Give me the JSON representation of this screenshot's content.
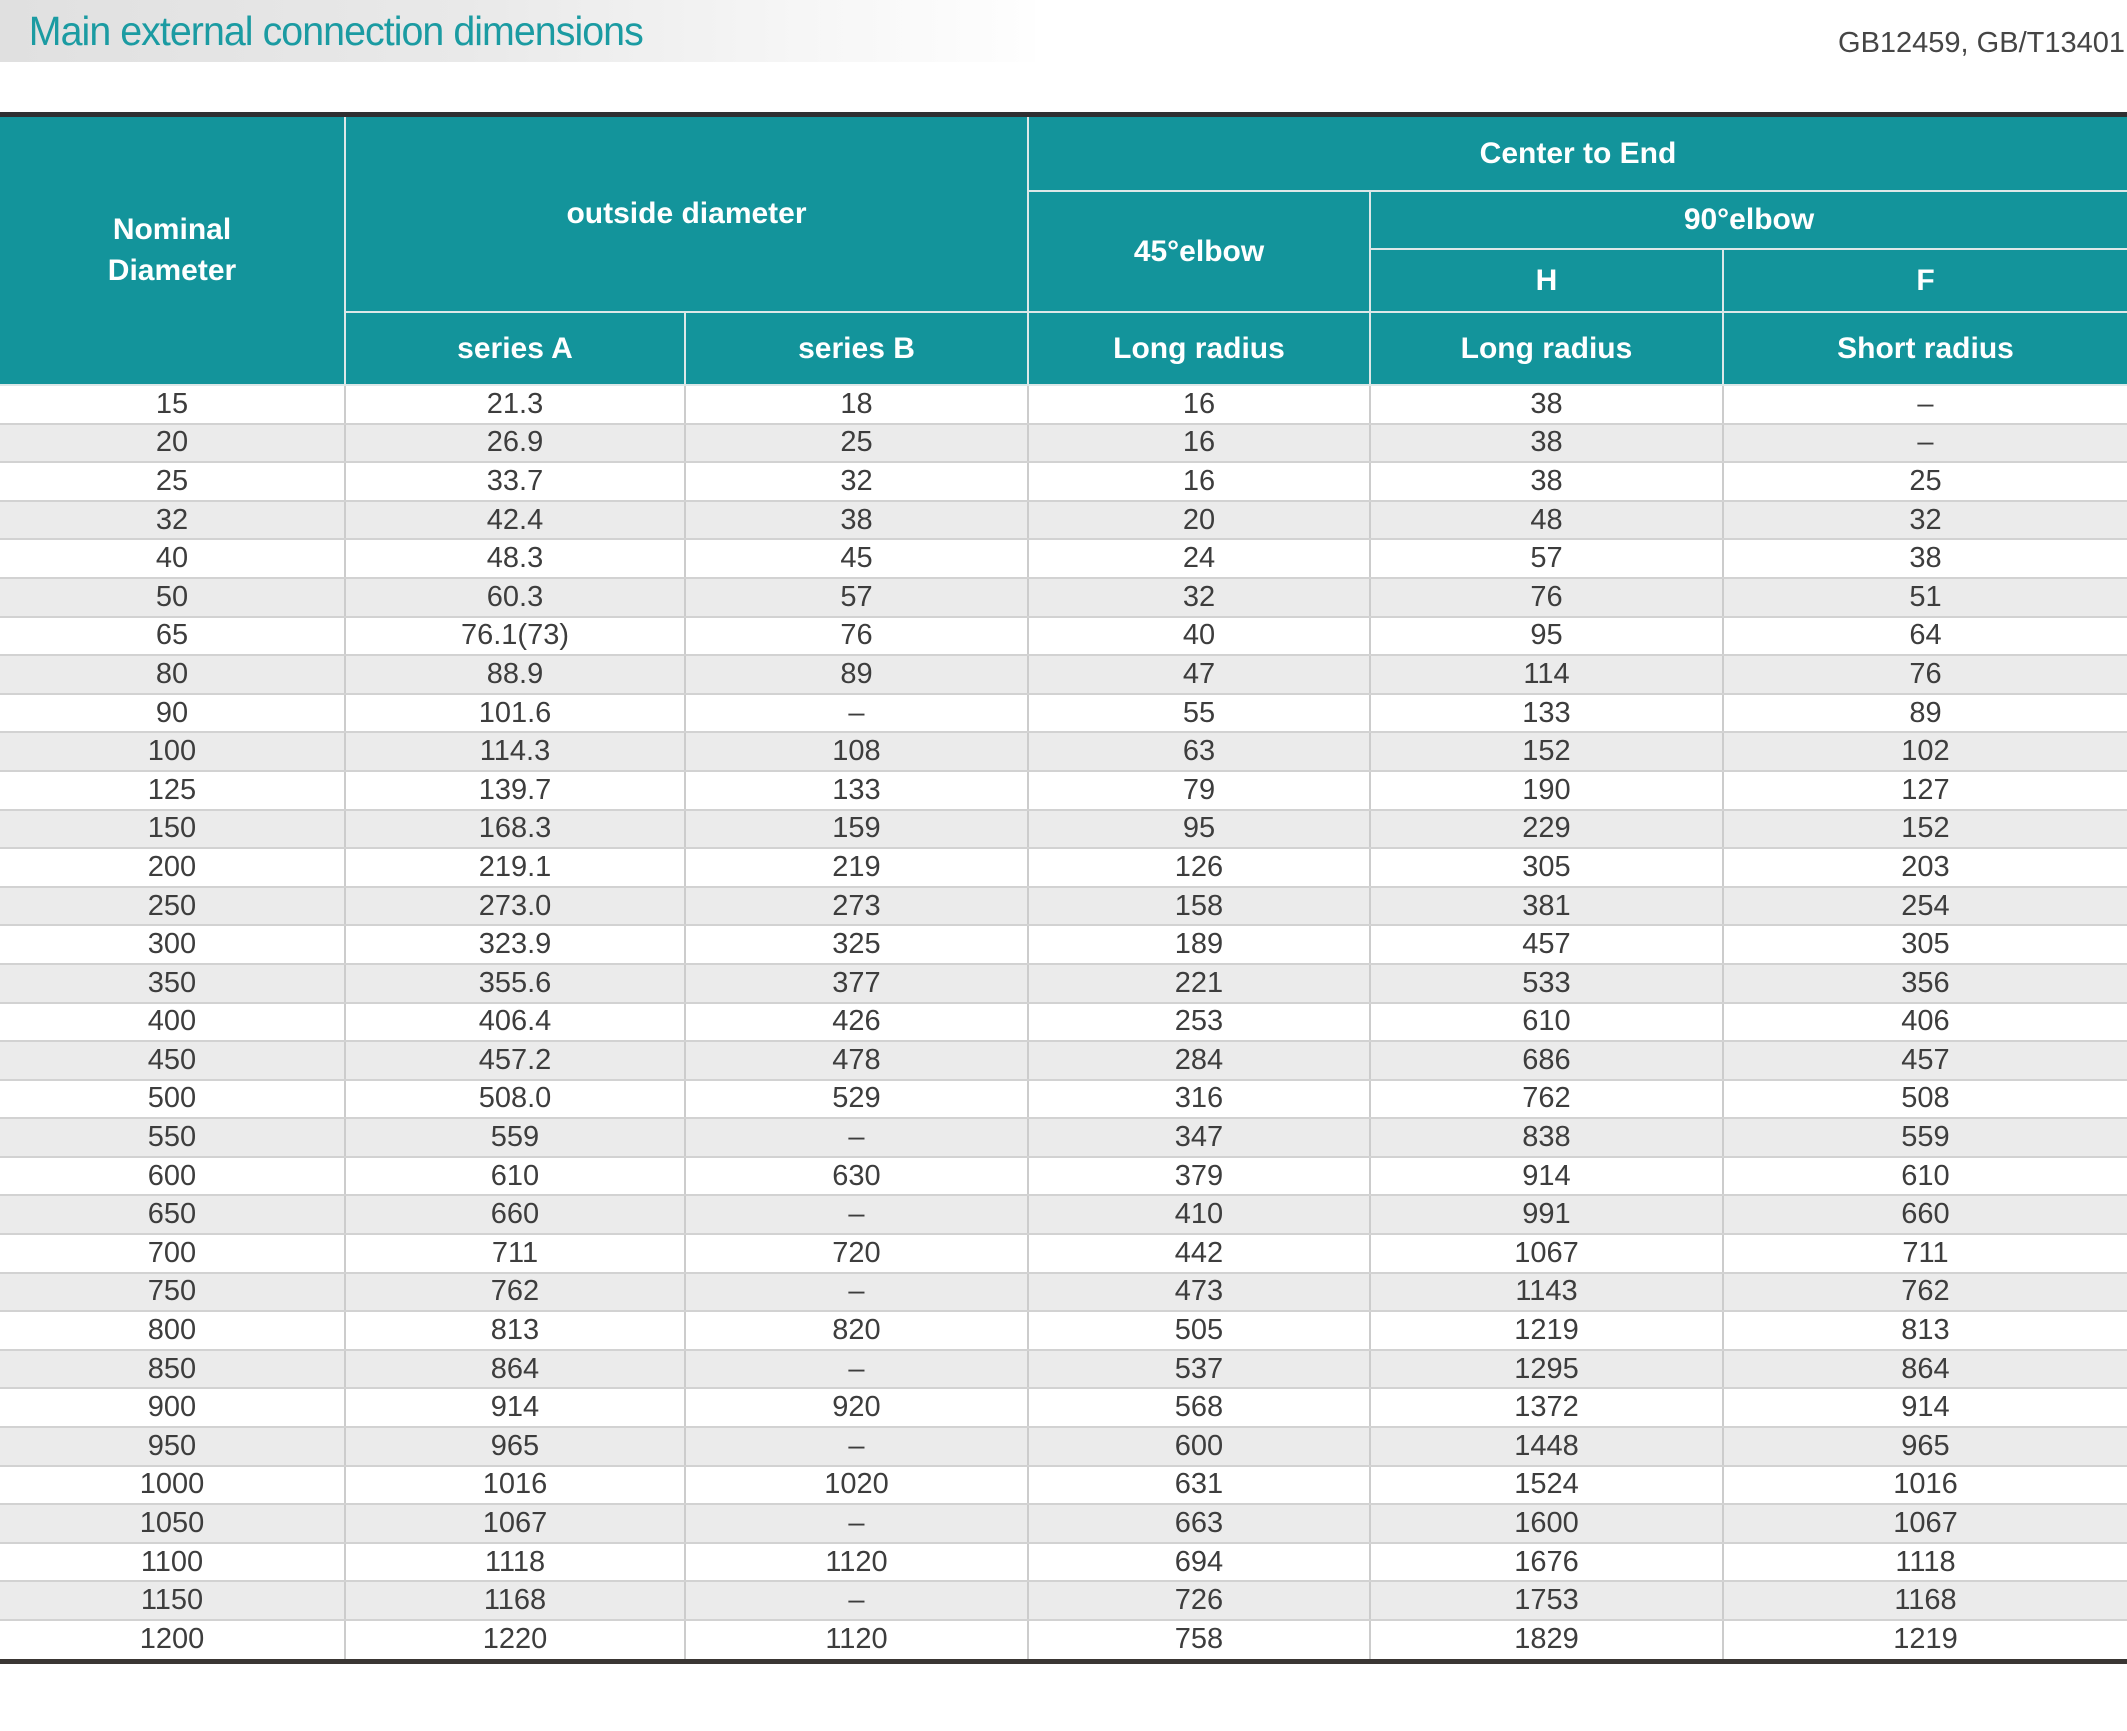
{
  "page": {
    "title": "Main external connection dimensions",
    "standards": "GB12459, GB/T13401"
  },
  "colors": {
    "header_teal": "#13949b",
    "title_teal": "#1b9ba2",
    "stripe_gray": "#ebebeb",
    "border_dark": "#333333"
  },
  "table": {
    "header": {
      "nominal_diameter": "Nominal Diameter",
      "outside_diameter": "outside diameter",
      "series_a": "series A",
      "series_b": "series B",
      "center_to_end": "Center to End",
      "elbow_45": "45°elbow",
      "elbow_90": "90°elbow",
      "h": "H",
      "f": "F",
      "long_radius_45": "Long radius",
      "long_radius_h": "Long radius",
      "short_radius_f": "Short radius"
    },
    "rows": [
      [
        "15",
        "21.3",
        "18",
        "16",
        "38",
        "–"
      ],
      [
        "20",
        "26.9",
        "25",
        "16",
        "38",
        "–"
      ],
      [
        "25",
        "33.7",
        "32",
        "16",
        "38",
        "25"
      ],
      [
        "32",
        "42.4",
        "38",
        "20",
        "48",
        "32"
      ],
      [
        "40",
        "48.3",
        "45",
        "24",
        "57",
        "38"
      ],
      [
        "50",
        "60.3",
        "57",
        "32",
        "76",
        "51"
      ],
      [
        "65",
        "76.1(73)",
        "76",
        "40",
        "95",
        "64"
      ],
      [
        "80",
        "88.9",
        "89",
        "47",
        "114",
        "76"
      ],
      [
        "90",
        "101.6",
        "–",
        "55",
        "133",
        "89"
      ],
      [
        "100",
        "114.3",
        "108",
        "63",
        "152",
        "102"
      ],
      [
        "125",
        "139.7",
        "133",
        "79",
        "190",
        "127"
      ],
      [
        "150",
        "168.3",
        "159",
        "95",
        "229",
        "152"
      ],
      [
        "200",
        "219.1",
        "219",
        "126",
        "305",
        "203"
      ],
      [
        "250",
        "273.0",
        "273",
        "158",
        "381",
        "254"
      ],
      [
        "300",
        "323.9",
        "325",
        "189",
        "457",
        "305"
      ],
      [
        "350",
        "355.6",
        "377",
        "221",
        "533",
        "356"
      ],
      [
        "400",
        "406.4",
        "426",
        "253",
        "610",
        "406"
      ],
      [
        "450",
        "457.2",
        "478",
        "284",
        "686",
        "457"
      ],
      [
        "500",
        "508.0",
        "529",
        "316",
        "762",
        "508"
      ],
      [
        "550",
        "559",
        "–",
        "347",
        "838",
        "559"
      ],
      [
        "600",
        "610",
        "630",
        "379",
        "914",
        "610"
      ],
      [
        "650",
        "660",
        "–",
        "410",
        "991",
        "660"
      ],
      [
        "700",
        "711",
        "720",
        "442",
        "1067",
        "711"
      ],
      [
        "750",
        "762",
        "–",
        "473",
        "1143",
        "762"
      ],
      [
        "800",
        "813",
        "820",
        "505",
        "1219",
        "813"
      ],
      [
        "850",
        "864",
        "–",
        "537",
        "1295",
        "864"
      ],
      [
        "900",
        "914",
        "920",
        "568",
        "1372",
        "914"
      ],
      [
        "950",
        "965",
        "–",
        "600",
        "1448",
        "965"
      ],
      [
        "1000",
        "1016",
        "1020",
        "631",
        "1524",
        "1016"
      ],
      [
        "1050",
        "1067",
        "–",
        "663",
        "1600",
        "1067"
      ],
      [
        "1100",
        "1118",
        "1120",
        "694",
        "1676",
        "1118"
      ],
      [
        "1150",
        "1168",
        "–",
        "726",
        "1753",
        "1168"
      ],
      [
        "1200",
        "1220",
        "1120",
        "758",
        "1829",
        "1219"
      ]
    ]
  }
}
